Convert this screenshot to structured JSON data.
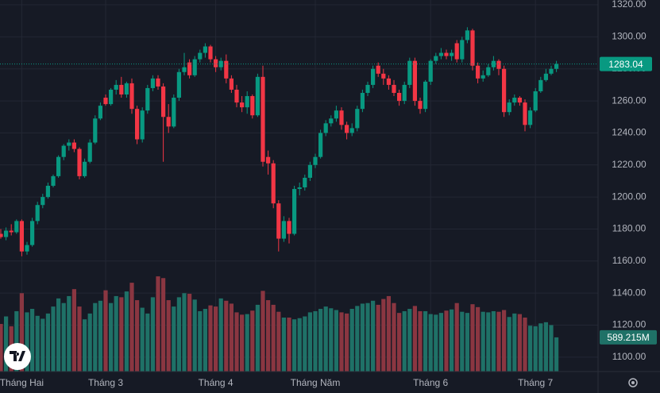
{
  "chart_data": {
    "type": "candlestick",
    "categories": [
      null,
      null,
      null,
      null,
      "Tháng Hai",
      null,
      null,
      null,
      null,
      null,
      null,
      null,
      null,
      null,
      null,
      null,
      null,
      null,
      null,
      null,
      "Tháng 3",
      null,
      null,
      null,
      null,
      null,
      null,
      null,
      null,
      null,
      null,
      null,
      null,
      null,
      null,
      null,
      null,
      null,
      null,
      null,
      null,
      "Tháng 4",
      null,
      null,
      null,
      null,
      null,
      null,
      null,
      null,
      null,
      null,
      null,
      null,
      null,
      null,
      null,
      null,
      null,
      null,
      "Tháng Năm",
      null,
      null,
      null,
      null,
      null,
      null,
      null,
      null,
      null,
      null,
      null,
      null,
      null,
      null,
      null,
      null,
      null,
      null,
      null,
      null,
      null,
      "Tháng 6",
      null,
      null,
      null,
      null,
      null,
      null,
      null,
      null,
      null,
      null,
      null,
      null,
      null,
      null,
      null,
      null,
      null,
      null,
      null,
      "Tháng 7",
      null,
      null,
      null,
      null
    ],
    "ohlc": [
      [
        1177,
        1180,
        1174,
        1175
      ],
      [
        1175,
        1181,
        1173,
        1179
      ],
      [
        1179,
        1183,
        1176,
        1178
      ],
      [
        1178,
        1186,
        1177,
        1185
      ],
      [
        1185,
        1186,
        1163,
        1166
      ],
      [
        1166,
        1172,
        1164,
        1170
      ],
      [
        1170,
        1187,
        1169,
        1185
      ],
      [
        1185,
        1197,
        1183,
        1195
      ],
      [
        1195,
        1202,
        1193,
        1200
      ],
      [
        1200,
        1209,
        1199,
        1207
      ],
      [
        1207,
        1214,
        1206,
        1213
      ],
      [
        1213,
        1226,
        1212,
        1225
      ],
      [
        1225,
        1233,
        1223,
        1232
      ],
      [
        1232,
        1236,
        1229,
        1234
      ],
      [
        1234,
        1236,
        1228,
        1230
      ],
      [
        1230,
        1231,
        1211,
        1213
      ],
      [
        1213,
        1224,
        1212,
        1222
      ],
      [
        1222,
        1236,
        1221,
        1234
      ],
      [
        1234,
        1251,
        1233,
        1249
      ],
      [
        1249,
        1259,
        1248,
        1257
      ],
      [
        1262,
        1264,
        1257,
        1258
      ],
      [
        1258,
        1268,
        1257,
        1267
      ],
      [
        1267,
        1273,
        1264,
        1270
      ],
      [
        1270,
        1275,
        1262,
        1264
      ],
      [
        1264,
        1272,
        1262,
        1271
      ],
      [
        1271,
        1274,
        1252,
        1255
      ],
      [
        1255,
        1257,
        1233,
        1236
      ],
      [
        1236,
        1256,
        1234,
        1254
      ],
      [
        1254,
        1270,
        1252,
        1268
      ],
      [
        1268,
        1276,
        1266,
        1274
      ],
      [
        1274,
        1276,
        1267,
        1269
      ],
      [
        1269,
        1271,
        1222,
        1250
      ],
      [
        1250,
        1258,
        1240,
        1244
      ],
      [
        1244,
        1264,
        1243,
        1262
      ],
      [
        1262,
        1280,
        1260,
        1278
      ],
      [
        1278,
        1290,
        1276,
        1281
      ],
      [
        1284,
        1286,
        1274,
        1276
      ],
      [
        1276,
        1288,
        1275,
        1286
      ],
      [
        1286,
        1292,
        1284,
        1290
      ],
      [
        1290,
        1296,
        1287,
        1294
      ],
      [
        1294,
        1295,
        1284,
        1286
      ],
      [
        1286,
        1288,
        1278,
        1281
      ],
      [
        1281,
        1287,
        1279,
        1285
      ],
      [
        1285,
        1289,
        1271,
        1274
      ],
      [
        1274,
        1276,
        1265,
        1267
      ],
      [
        1267,
        1270,
        1256,
        1259
      ],
      [
        1259,
        1263,
        1253,
        1256
      ],
      [
        1256,
        1266,
        1252,
        1263
      ],
      [
        1263,
        1264,
        1249,
        1251
      ],
      [
        1251,
        1277,
        1250,
        1275
      ],
      [
        1275,
        1282,
        1219,
        1222
      ],
      [
        1225,
        1229,
        1214,
        1221
      ],
      [
        1221,
        1223,
        1193,
        1196
      ],
      [
        1196,
        1198,
        1166,
        1174
      ],
      [
        1174,
        1188,
        1172,
        1185
      ],
      [
        1185,
        1187,
        1171,
        1177
      ],
      [
        1177,
        1207,
        1176,
        1205
      ],
      [
        1205,
        1209,
        1201,
        1206
      ],
      [
        1206,
        1214,
        1204,
        1212
      ],
      [
        1212,
        1222,
        1210,
        1220
      ],
      [
        1220,
        1227,
        1218,
        1225
      ],
      [
        1225,
        1242,
        1224,
        1240
      ],
      [
        1240,
        1248,
        1238,
        1246
      ],
      [
        1246,
        1251,
        1244,
        1249
      ],
      [
        1249,
        1257,
        1247,
        1254
      ],
      [
        1254,
        1256,
        1242,
        1245
      ],
      [
        1245,
        1247,
        1236,
        1240
      ],
      [
        1240,
        1246,
        1238,
        1243
      ],
      [
        1243,
        1257,
        1241,
        1255
      ],
      [
        1255,
        1267,
        1253,
        1265
      ],
      [
        1265,
        1272,
        1263,
        1270
      ],
      [
        1270,
        1282,
        1268,
        1280
      ],
      [
        1282,
        1284,
        1275,
        1277
      ],
      [
        1277,
        1280,
        1270,
        1274
      ],
      [
        1274,
        1276,
        1267,
        1270
      ],
      [
        1270,
        1273,
        1263,
        1265
      ],
      [
        1265,
        1267,
        1257,
        1260
      ],
      [
        1260,
        1272,
        1258,
        1270
      ],
      [
        1270,
        1287,
        1268,
        1285
      ],
      [
        1285,
        1287,
        1257,
        1260
      ],
      [
        1260,
        1262,
        1252,
        1255
      ],
      [
        1255,
        1273,
        1253,
        1272
      ],
      [
        1272,
        1286,
        1270,
        1285
      ],
      [
        1285,
        1290,
        1283,
        1288
      ],
      [
        1288,
        1293,
        1286,
        1290
      ],
      [
        1290,
        1292,
        1286,
        1288
      ],
      [
        1288,
        1292,
        1285,
        1290
      ],
      [
        1296,
        1298,
        1284,
        1286
      ],
      [
        1286,
        1300,
        1284,
        1298
      ],
      [
        1298,
        1306,
        1296,
        1304
      ],
      [
        1304,
        1305,
        1279,
        1282
      ],
      [
        1282,
        1284,
        1271,
        1274
      ],
      [
        1274,
        1279,
        1272,
        1276
      ],
      [
        1276,
        1283,
        1275,
        1281
      ],
      [
        1281,
        1288,
        1279,
        1285
      ],
      [
        1285,
        1286,
        1276,
        1280
      ],
      [
        1280,
        1282,
        1250,
        1253
      ],
      [
        1253,
        1261,
        1251,
        1259
      ],
      [
        1259,
        1264,
        1257,
        1262
      ],
      [
        1262,
        1263,
        1257,
        1259
      ],
      [
        1259,
        1261,
        1241,
        1245
      ],
      [
        1245,
        1256,
        1243,
        1254
      ],
      [
        1254,
        1268,
        1253,
        1266
      ],
      [
        1266,
        1275,
        1265,
        1273
      ],
      [
        1273,
        1280,
        1272,
        1277
      ],
      [
        1277,
        1282,
        1276,
        1280
      ],
      [
        1280,
        1285,
        1278,
        1283.04
      ]
    ],
    "volume": [
      820,
      950,
      780,
      1040,
      1350,
      1020,
      1080,
      960,
      910,
      1000,
      1120,
      1260,
      1180,
      1300,
      1420,
      1120,
      900,
      1000,
      1180,
      1220,
      1400,
      1180,
      1300,
      1280,
      1380,
      1530,
      1230,
      1100,
      1000,
      1280,
      1640,
      1610,
      1230,
      1120,
      1280,
      1350,
      1340,
      1240,
      1040,
      1080,
      1140,
      1120,
      1260,
      1220,
      1170,
      1020,
      980,
      990,
      1050,
      1150,
      1390,
      1230,
      1150,
      1030,
      930,
      930,
      900,
      920,
      950,
      1020,
      1040,
      1080,
      1120,
      1090,
      1060,
      1020,
      1000,
      1080,
      1130,
      1170,
      1180,
      1220,
      1150,
      1250,
      1300,
      1180,
      1010,
      1040,
      1080,
      1130,
      1040,
      1040,
      990,
      980,
      1010,
      1050,
      1070,
      1180,
      1030,
      1010,
      1160,
      1110,
      1030,
      1020,
      1040,
      1030,
      1060,
      940,
      1000,
      990,
      930,
      790,
      780,
      830,
      850,
      800,
      589.215
    ],
    "volume_last_label": "589.215M",
    "ylim": [
      1091,
      1323
    ],
    "yticks": [
      {
        "value": 1100,
        "label": "1100.00"
      },
      {
        "value": 1120,
        "label": "1120.00"
      },
      {
        "value": 1140,
        "label": "1140.00"
      },
      {
        "value": 1160,
        "label": "1160.00"
      },
      {
        "value": 1180,
        "label": "1180.00"
      },
      {
        "value": 1200,
        "label": "1200.00"
      },
      {
        "value": 1220,
        "label": "1220.00"
      },
      {
        "value": 1240,
        "label": "1240.00"
      },
      {
        "value": 1260,
        "label": "1260.00"
      },
      {
        "value": 1280,
        "label": "1280.00"
      },
      {
        "value": 1300,
        "label": "1300.00"
      },
      {
        "value": 1320,
        "label": "1320.00"
      }
    ],
    "volume_ylim": [
      0,
      6400
    ],
    "grid": true,
    "up_color": "#089981",
    "down_color": "#f23645",
    "volume_up_color": "#1f7167",
    "volume_down_color": "#8a3641"
  }
}
